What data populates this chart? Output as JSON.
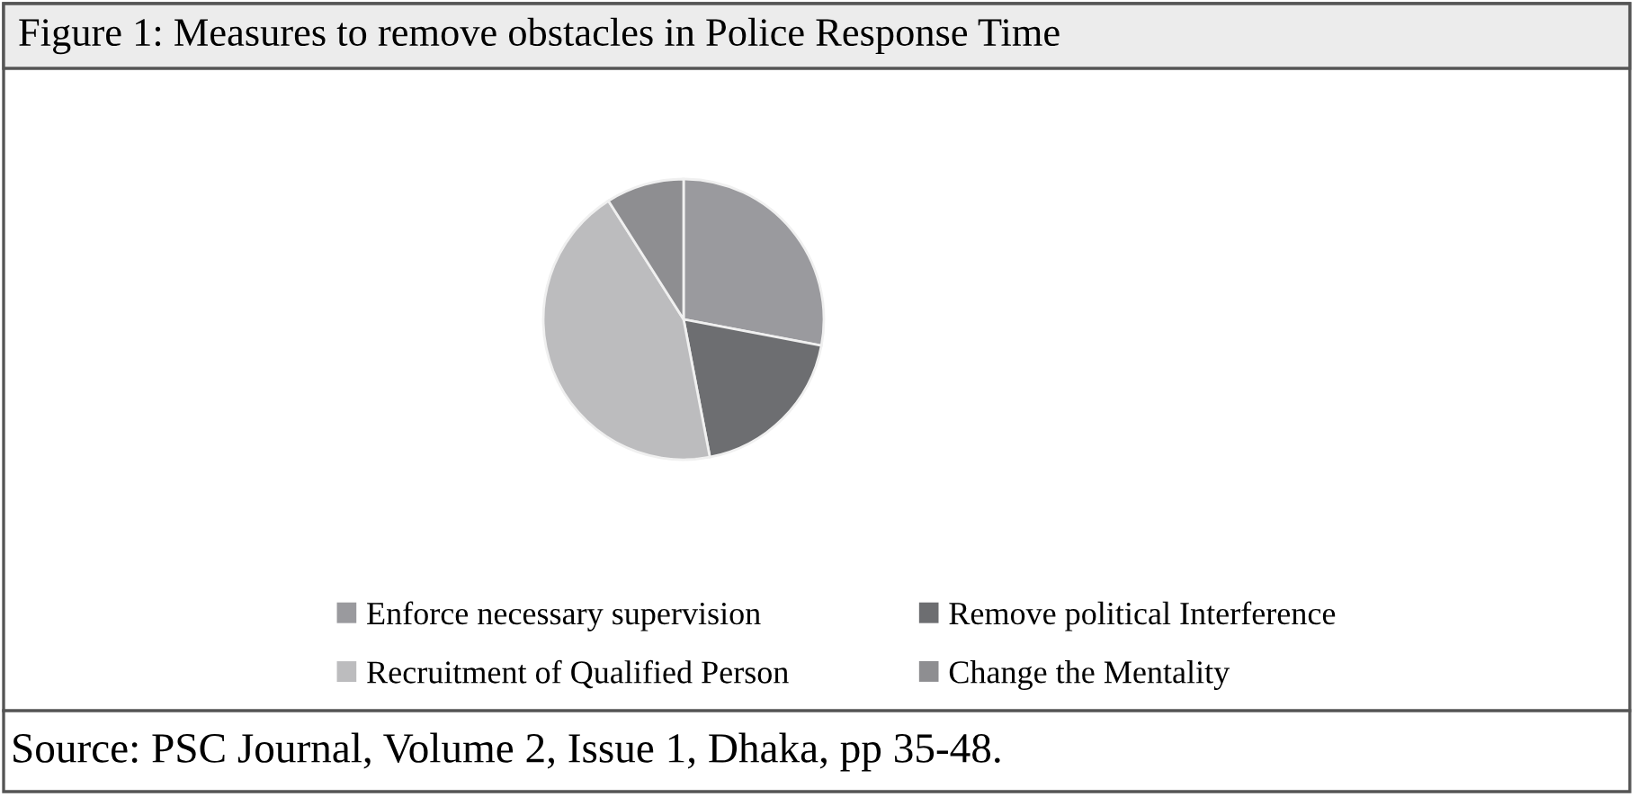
{
  "chart_data": {
    "type": "pie",
    "title": "Figure 1: Measures to remove obstacles in Police Response Time",
    "categories": [
      "Enforce necessary supervision",
      "Remove political Interference",
      "Recruitment of Qualified Person",
      "Change the Mentality"
    ],
    "values": [
      28,
      19,
      44,
      9
    ],
    "colors": [
      "#9a9a9e",
      "#6d6e71",
      "#bcbcbe",
      "#8e8e91"
    ],
    "legend": "bottom",
    "annotations": [
      "Source: PSC Journal, Volume 2, Issue 1, Dhaka, pp 35-48."
    ]
  }
}
